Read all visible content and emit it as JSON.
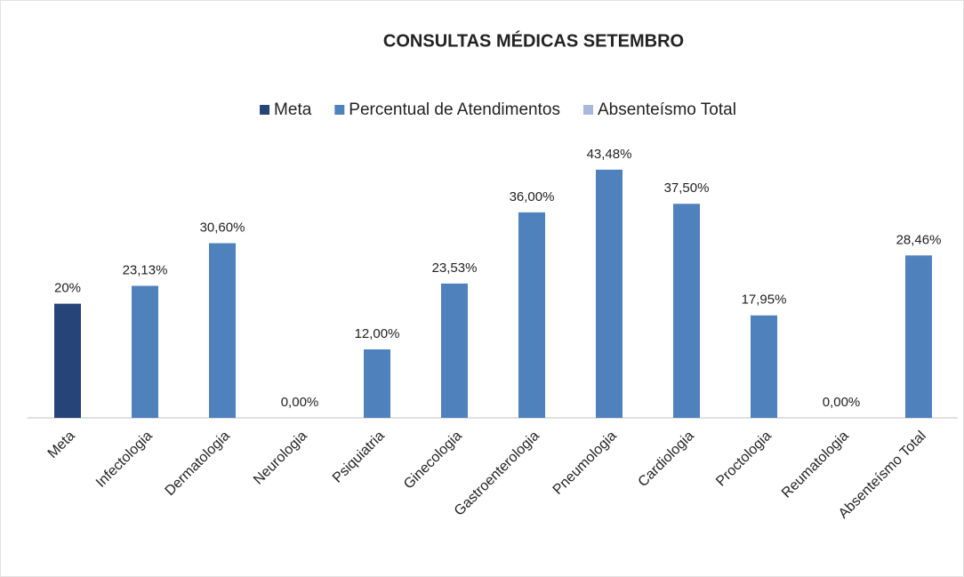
{
  "chart_data": {
    "type": "bar",
    "title": "CONSULTAS MÉDICAS SETEMBRO",
    "categories": [
      "Meta",
      "Infectologia",
      "Dermatologia",
      "Neurologia",
      "Psiquiatria",
      "Ginecologia",
      "Gastroenterologia",
      "Pneumologia",
      "Cardiologia",
      "Proctologia",
      "Reumatologia",
      "Absenteísmo Total"
    ],
    "ylim": [
      0,
      50
    ],
    "legend": "top",
    "series": [
      {
        "name": "Meta",
        "color": "#264478",
        "values": [
          20,
          null,
          null,
          null,
          null,
          null,
          null,
          null,
          null,
          null,
          null,
          null
        ],
        "value_labels": [
          "20%",
          null,
          null,
          null,
          null,
          null,
          null,
          null,
          null,
          null,
          null,
          null
        ]
      },
      {
        "name": "Percentual de Atendimentos",
        "color": "#4f81bd",
        "values": [
          null,
          23.13,
          30.6,
          0,
          12,
          23.53,
          36,
          43.48,
          37.5,
          17.95,
          0,
          null
        ],
        "value_labels": [
          null,
          "23,13%",
          "30,60%",
          "0,00%",
          "12,00%",
          "23,53%",
          "36,00%",
          "43,48%",
          "37,50%",
          "17,95%",
          "0,00%",
          null
        ]
      },
      {
        "name": "Absenteísmo Total",
        "color": "#4f81bd",
        "legend_color": "#a7b9db",
        "values": [
          null,
          null,
          null,
          null,
          null,
          null,
          null,
          null,
          null,
          null,
          null,
          28.46
        ],
        "value_labels": [
          null,
          null,
          null,
          null,
          null,
          null,
          null,
          null,
          null,
          null,
          null,
          "28,46%"
        ]
      }
    ]
  }
}
